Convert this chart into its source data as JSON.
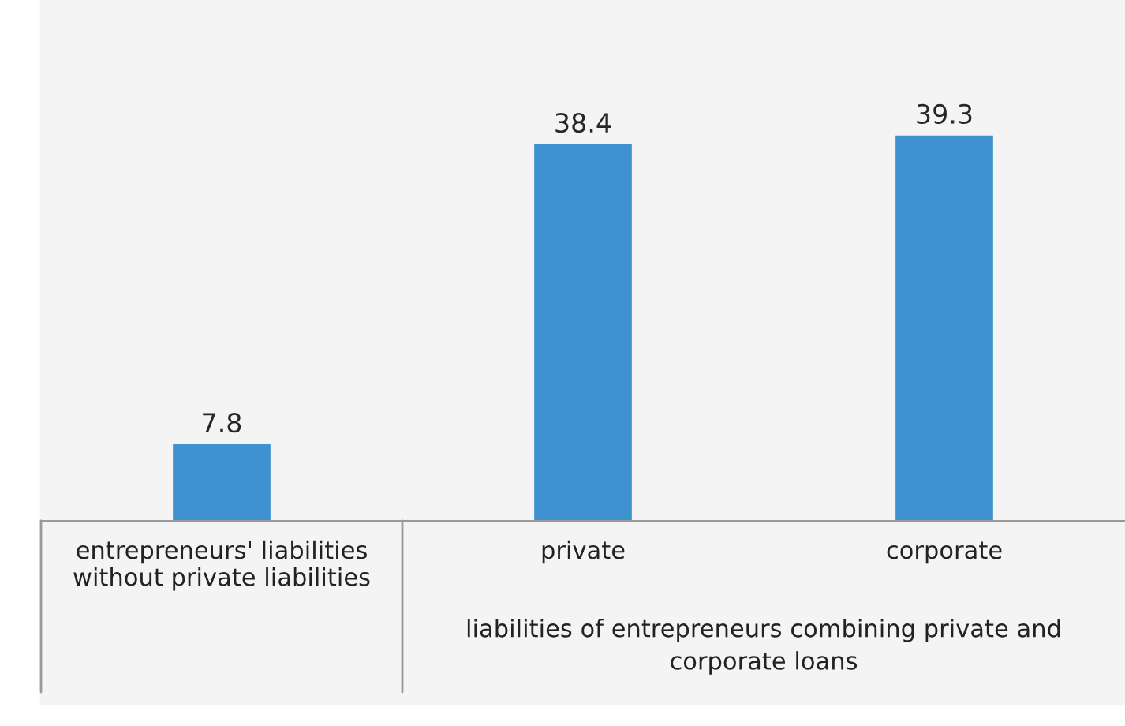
{
  "chart_data": {
    "type": "bar",
    "categories": [
      "entrepreneurs' liabilities\nwithout private liabilities",
      "private",
      "corporate"
    ],
    "values": [
      7.8,
      38.4,
      39.3
    ],
    "color": "#3d92cf",
    "data_labels": true,
    "annotations": [
      "liabilities of entrepreneurs combining private and\ncorporate loans"
    ]
  }
}
